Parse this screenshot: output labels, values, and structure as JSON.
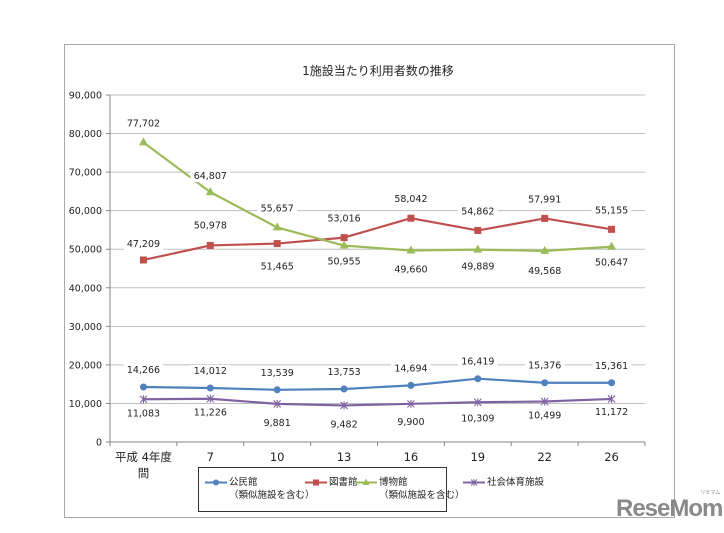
{
  "chart_data": {
    "type": "line",
    "title": "1施設当たり利用者数の推移",
    "xlabel": "",
    "ylabel": "",
    "categories": [
      "平成 4年度間",
      "7",
      "10",
      "13",
      "16",
      "19",
      "22",
      "26"
    ],
    "ylim": [
      0,
      90000
    ],
    "yticks": [
      0,
      10000,
      20000,
      30000,
      40000,
      50000,
      60000,
      70000,
      80000,
      90000
    ],
    "ytick_labels": [
      "0",
      "10,000",
      "20,000",
      "30,000",
      "40,000",
      "50,000",
      "60,000",
      "70,000",
      "80,000",
      "90,000"
    ],
    "grid": true,
    "legend_position": "bottom",
    "series": [
      {
        "name": "公民館（類似施設を含む）",
        "color": "#4f81bd",
        "marker": "circle",
        "values": [
          14266,
          14012,
          13539,
          13753,
          14694,
          16419,
          15376,
          15361
        ],
        "labels": [
          "14,266",
          "14,012",
          "13,539",
          "13,753",
          "14,694",
          "16,419",
          "15,376",
          "15,361"
        ]
      },
      {
        "name": "図書館",
        "color": "#c0504d",
        "marker": "square",
        "values": [
          47209,
          50978,
          51465,
          53016,
          58042,
          54862,
          57991,
          55155
        ],
        "labels": [
          "47,209",
          "50,978",
          "51,465",
          "53,016",
          "58,042",
          "54,862",
          "57,991",
          "55,155"
        ]
      },
      {
        "name": "博物館（類似施設を含む）",
        "color": "#9bbb59",
        "marker": "triangle",
        "values": [
          77702,
          64807,
          55657,
          50955,
          49660,
          49889,
          49568,
          50647
        ],
        "labels": [
          "77,702",
          "64,807",
          "55,657",
          "50,955",
          "49,660",
          "49,889",
          "49,568",
          "50,647"
        ]
      },
      {
        "name": "社会体育施設",
        "color": "#8064a2",
        "marker": "star",
        "values": [
          11083,
          11226,
          9881,
          9482,
          9900,
          10309,
          10499,
          11172
        ],
        "labels": [
          "11,083",
          "11,226",
          "9,881",
          "9,482",
          "9,900",
          "10,309",
          "10,499",
          "11,172"
        ]
      }
    ]
  },
  "chart": {
    "title": "1施設当たり利用者数の推移",
    "x_first_label_line1": "平成 4年度",
    "x_first_label_line2": "間"
  },
  "legend": {
    "items": [
      {
        "line1": "公民館",
        "line2": "（類似施設を含む）",
        "color": "#4f81bd"
      },
      {
        "line1": "図書館",
        "line2": "",
        "color": "#c0504d"
      },
      {
        "line1": "博物館",
        "line2": "（類似施設を含む）",
        "color": "#9bbb59"
      },
      {
        "line1": "社会体育施設",
        "line2": "",
        "color": "#8064a2"
      }
    ]
  },
  "watermark": {
    "text": "ReseMom",
    "ruby": "リセマム"
  }
}
